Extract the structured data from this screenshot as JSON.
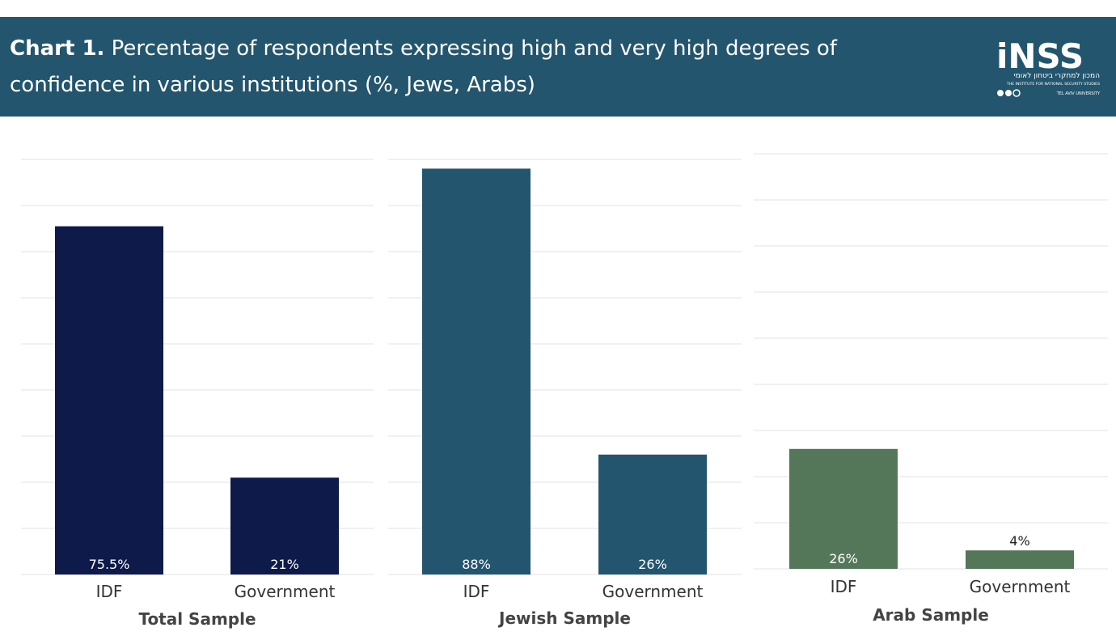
{
  "header": {
    "title_bold": "Chart 1.",
    "title_rest": "Percentage of respondents expressing high and very high degrees of confidence in various institutions (%, Jews, Arabs)",
    "logo_text": "iNSS",
    "logo_hebrew": "המכון למחקרי ביטחון לאומי",
    "logo_english": "THE INSTITUTE FOR NATIONAL SECURITY STUDIES",
    "logo_university": "TEL AVIV UNIVERSITY"
  },
  "colors": {
    "header_bg": "#23556e",
    "total": "#0e1a4a",
    "jewish": "#23556e",
    "arab": "#54775a"
  },
  "chart_data": [
    {
      "type": "bar",
      "title": "Total Sample",
      "categories": [
        "IDF",
        "Government"
      ],
      "values": [
        75.5,
        21
      ],
      "value_labels": [
        "75.5%",
        "21%"
      ],
      "ylim": [
        0,
        90
      ],
      "grid": true,
      "color": "#0e1a4a"
    },
    {
      "type": "bar",
      "title": "Jewish Sample",
      "categories": [
        "IDF",
        "Government"
      ],
      "values": [
        88,
        26
      ],
      "value_labels": [
        "88%",
        "26%"
      ],
      "ylim": [
        0,
        90
      ],
      "grid": true,
      "color": "#23556e"
    },
    {
      "type": "bar",
      "title": "Arab Sample",
      "categories": [
        "IDF",
        "Government"
      ],
      "values": [
        26,
        4
      ],
      "value_labels": [
        "26%",
        "4%"
      ],
      "ylim": [
        0,
        90
      ],
      "grid": true,
      "color": "#54775a"
    }
  ]
}
